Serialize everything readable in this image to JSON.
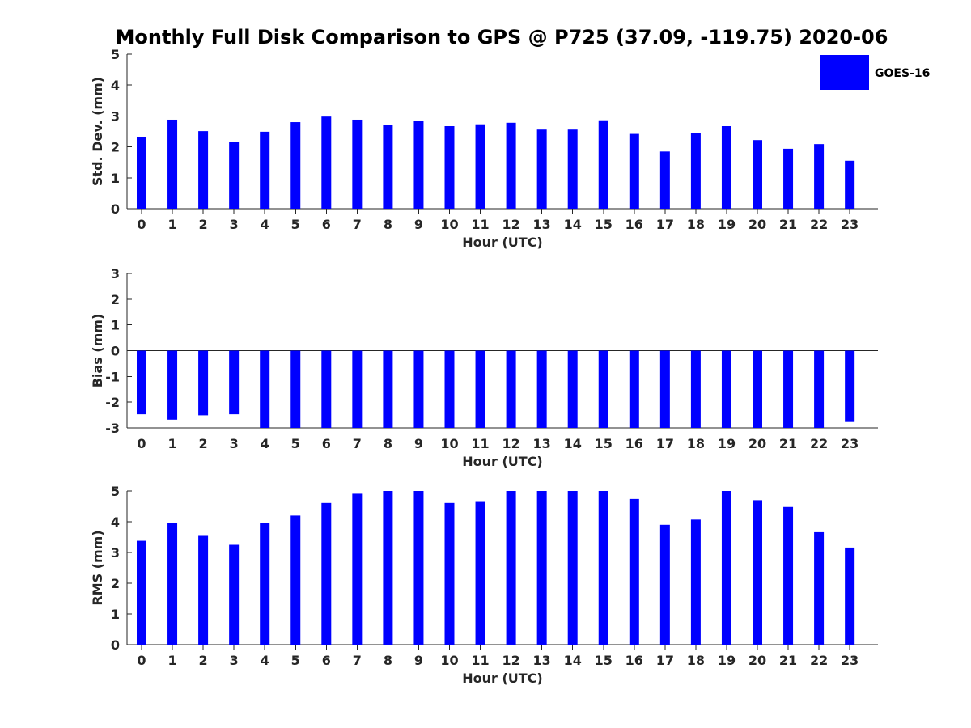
{
  "title": "Monthly Full Disk Comparison to GPS @ P725 (37.09, -119.75) 2020-06",
  "legend": {
    "label": "GOES-16",
    "color": "#0000ff",
    "position": "top-right"
  },
  "chart_data": [
    {
      "type": "bar",
      "name": "std-dev",
      "xlabel": "Hour (UTC)",
      "ylabel": "Std. Dev. (mm)",
      "categories": [
        "0",
        "1",
        "2",
        "3",
        "4",
        "5",
        "6",
        "7",
        "8",
        "9",
        "10",
        "11",
        "12",
        "13",
        "14",
        "15",
        "16",
        "17",
        "18",
        "19",
        "20",
        "21",
        "22",
        "23"
      ],
      "series": [
        {
          "name": "GOES-16",
          "color": "#0000ff",
          "values": [
            2.33,
            2.88,
            2.51,
            2.15,
            2.49,
            2.8,
            2.98,
            2.88,
            2.7,
            2.85,
            2.67,
            2.73,
            2.78,
            2.56,
            2.56,
            2.86,
            2.42,
            1.85,
            2.46,
            2.67,
            2.22,
            1.94,
            2.09,
            1.55
          ]
        }
      ],
      "ylim": [
        0,
        5
      ],
      "yticks": [
        "0",
        "1",
        "2",
        "3",
        "4",
        "5"
      ],
      "grid": false
    },
    {
      "type": "bar",
      "name": "bias",
      "xlabel": "Hour (UTC)",
      "ylabel": "Bias (mm)",
      "categories": [
        "0",
        "1",
        "2",
        "3",
        "4",
        "5",
        "6",
        "7",
        "8",
        "9",
        "10",
        "11",
        "12",
        "13",
        "14",
        "15",
        "16",
        "17",
        "18",
        "19",
        "20",
        "21",
        "22",
        "23"
      ],
      "series": [
        {
          "name": "GOES-16",
          "color": "#0000ff",
          "values": [
            -2.47,
            -2.68,
            -2.51,
            -2.47,
            -3.0,
            -3.0,
            -3.0,
            -3.0,
            -3.0,
            -3.0,
            -3.0,
            -3.0,
            -3.0,
            -3.0,
            -3.0,
            -3.0,
            -3.0,
            -3.0,
            -3.0,
            -3.0,
            -3.0,
            -3.0,
            -3.0,
            -2.77
          ]
        }
      ],
      "ylim": [
        -3,
        3
      ],
      "yticks": [
        "-3",
        "-2",
        "-1",
        "0",
        "1",
        "2",
        "3"
      ],
      "grid": false
    },
    {
      "type": "bar",
      "name": "rms",
      "xlabel": "Hour (UTC)",
      "ylabel": "RMS (mm)",
      "categories": [
        "0",
        "1",
        "2",
        "3",
        "4",
        "5",
        "6",
        "7",
        "8",
        "9",
        "10",
        "11",
        "12",
        "13",
        "14",
        "15",
        "16",
        "17",
        "18",
        "19",
        "20",
        "21",
        "22",
        "23"
      ],
      "series": [
        {
          "name": "GOES-16",
          "color": "#0000ff",
          "values": [
            3.38,
            3.95,
            3.54,
            3.25,
            3.95,
            4.2,
            4.61,
            4.91,
            5.0,
            5.0,
            4.61,
            4.67,
            5.0,
            5.0,
            5.0,
            5.0,
            4.74,
            3.9,
            4.07,
            5.0,
            4.7,
            4.48,
            3.66,
            3.16
          ]
        }
      ],
      "ylim": [
        0,
        5
      ],
      "yticks": [
        "0",
        "1",
        "2",
        "3",
        "4",
        "5"
      ],
      "grid": false
    }
  ]
}
